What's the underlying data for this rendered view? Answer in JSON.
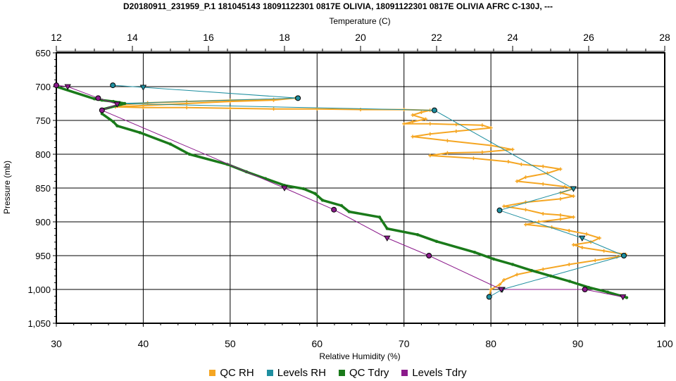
{
  "chart_data": {
    "type": "line",
    "title": "D20180911_231959_P.1 181045143 18091122301 0817E OLIVIA, 18091122301 0817E OLIVIA AFRC C-130J, ---",
    "x_top_label": "Temperature (C)",
    "x_bottom_label": "Relative Humidity (%)",
    "y_label": "Pressure (mb)",
    "x_top_range": [
      12,
      28
    ],
    "x_top_ticks": [
      "12",
      "14",
      "16",
      "18",
      "20",
      "22",
      "24",
      "26",
      "28"
    ],
    "x_bottom_range": [
      30,
      100
    ],
    "x_bottom_ticks": [
      "30",
      "40",
      "50",
      "60",
      "70",
      "80",
      "90",
      "100"
    ],
    "y_range": [
      650,
      1050
    ],
    "y_reversed": true,
    "y_ticks": [
      "650",
      "700",
      "750",
      "800",
      "850",
      "900",
      "950",
      "1,000",
      "1,050"
    ],
    "grid": true,
    "legend_position": "bottom",
    "series": [
      {
        "name": "QC RH",
        "axis": "rh",
        "color": "#f5a623",
        "x": [
          37.5,
          40.5,
          45,
          50,
          55,
          57.5,
          55,
          50,
          45,
          40,
          36.8,
          40,
          45,
          50,
          55,
          60,
          65,
          70,
          73,
          72,
          71,
          72.5,
          71,
          70,
          73,
          76,
          79,
          80,
          76,
          73,
          71,
          75,
          80,
          82.5,
          79,
          75,
          73,
          78,
          82,
          83.5,
          86,
          88,
          86.5,
          84,
          83,
          86,
          88.5,
          89.5,
          88,
          89.5,
          88,
          84,
          81.5,
          84,
          86,
          88,
          89.5,
          88,
          85.5,
          84,
          87,
          89,
          91,
          92.5,
          91.5,
          89.5,
          90.5,
          93,
          95.5,
          94.5,
          92,
          89,
          86,
          83,
          81.5,
          81,
          80,
          79.8
        ],
        "y": [
          727,
          724,
          722,
          720,
          719,
          717,
          720,
          722,
          725,
          728,
          730,
          731,
          731,
          732,
          733,
          733,
          734,
          734,
          735,
          738,
          742,
          748,
          752,
          755,
          755,
          756,
          757,
          761,
          766,
          770,
          774,
          780,
          787,
          793,
          797,
          798,
          802,
          806,
          811,
          815,
          818,
          822,
          828,
          834,
          840,
          844,
          848,
          851,
          857,
          862,
          866,
          871,
          877,
          882,
          888,
          890,
          893,
          896,
          900,
          904,
          908,
          913,
          918,
          924,
          930,
          934,
          938,
          943,
          948,
          952,
          957,
          963,
          970,
          978,
          986,
          993,
          1000,
          1010
        ]
      },
      {
        "name": "Levels RH",
        "axis": "rh",
        "color": "#1f8fa0",
        "x": [
          36.5,
          40,
          57.8,
          37,
          73.5,
          89.5,
          81,
          90.5,
          95.3,
          81.3,
          79.8
        ],
        "y": [
          698,
          701,
          717,
          725,
          735,
          851,
          883,
          924,
          950,
          1000,
          1011
        ]
      },
      {
        "name": "QC Tdry",
        "axis": "temp",
        "color": "#1a7a1a",
        "x": [
          12,
          13,
          13.2,
          13.5,
          13.8,
          13.2,
          13.2,
          13.5,
          13.6,
          14.2,
          15,
          15.5,
          16.5,
          17,
          17.5,
          18,
          18.5,
          18.8,
          19,
          19.5,
          19.7,
          20.5,
          20.7,
          21.5,
          22,
          23,
          23.5,
          24,
          24.5,
          25,
          25.5,
          26,
          26.5,
          27
        ],
        "y": [
          700,
          718,
          720,
          722,
          725,
          734,
          740,
          752,
          758,
          768,
          785,
          800,
          815,
          826,
          836,
          846,
          851,
          858,
          868,
          876,
          885,
          893,
          910,
          919,
          929,
          945,
          955,
          963,
          972,
          980,
          988,
          997,
          1004,
          1012
        ]
      },
      {
        "name": "Levels Tdry",
        "axis": "temp",
        "color": "#8b1a8b",
        "x": [
          12,
          12.3,
          13.1,
          13.6,
          13.2,
          18,
          19.3,
          20.7,
          21.8,
          23.7,
          25.9,
          26.9
        ],
        "y": [
          698,
          700,
          717,
          726,
          735,
          850,
          882,
          924,
          950,
          1000,
          1000,
          1011
        ]
      }
    ]
  }
}
